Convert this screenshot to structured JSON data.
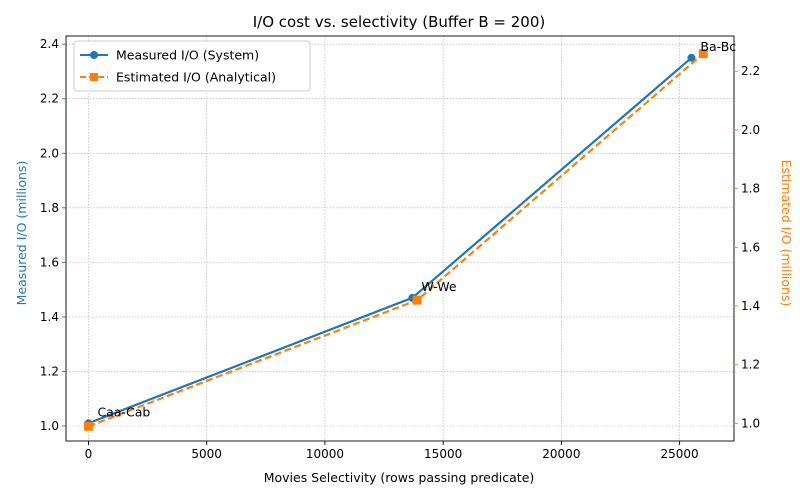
{
  "chart_data": {
    "type": "line",
    "title": "I/O cost vs. selectivity  (Buffer B = 200)",
    "xlabel": "Movies Selectivity (rows passing predicate)",
    "ylabel_left": "Measured I/O (millions)",
    "ylabel_right": "Estimated I/O (millions)",
    "xlim": [
      -950,
      27300
    ],
    "ylim_left": [
      0.945,
      2.43
    ],
    "ylim_right": [
      0.94,
      2.32
    ],
    "x_ticks": [
      0,
      5000,
      10000,
      15000,
      20000,
      25000
    ],
    "x_tick_labels": [
      "0",
      "5000",
      "10000",
      "15000",
      "20000",
      "25000"
    ],
    "y_left_ticks": [
      1.0,
      1.2,
      1.4,
      1.6,
      1.8,
      2.0,
      2.2,
      2.4
    ],
    "y_left_tick_labels": [
      "1.0",
      "1.2",
      "1.4",
      "1.6",
      "1.8",
      "2.0",
      "2.2",
      "2.4"
    ],
    "y_right_ticks": [
      1.0,
      1.2,
      1.4,
      1.6,
      1.8,
      2.0,
      2.2
    ],
    "y_right_tick_labels": [
      "1.0",
      "1.2",
      "1.4",
      "1.6",
      "1.8",
      "2.0",
      "2.2"
    ],
    "grid": true,
    "legend_position": "top-left",
    "colors": {
      "measured": "#1f77b4",
      "estimated": "#ff7f0e"
    },
    "series": [
      {
        "name": "Measured I/O (System)",
        "axis": "left",
        "style": "solid",
        "marker": "circle",
        "x": [
          0,
          13700,
          25500
        ],
        "y": [
          1.01,
          1.47,
          2.35
        ]
      },
      {
        "name": "Estimated I/O (Analytical)",
        "axis": "right",
        "style": "dashed",
        "marker": "square",
        "x": [
          0,
          13900,
          26000
        ],
        "y": [
          0.99,
          1.42,
          2.26
        ]
      }
    ],
    "annotations": [
      {
        "text": "Caa-Cab",
        "x": 0,
        "y": 1.01
      },
      {
        "text": "W-We",
        "x": 13700,
        "y": 1.47
      },
      {
        "text": "Ba-Bc",
        "x": 25500,
        "y": 2.35
      }
    ]
  }
}
